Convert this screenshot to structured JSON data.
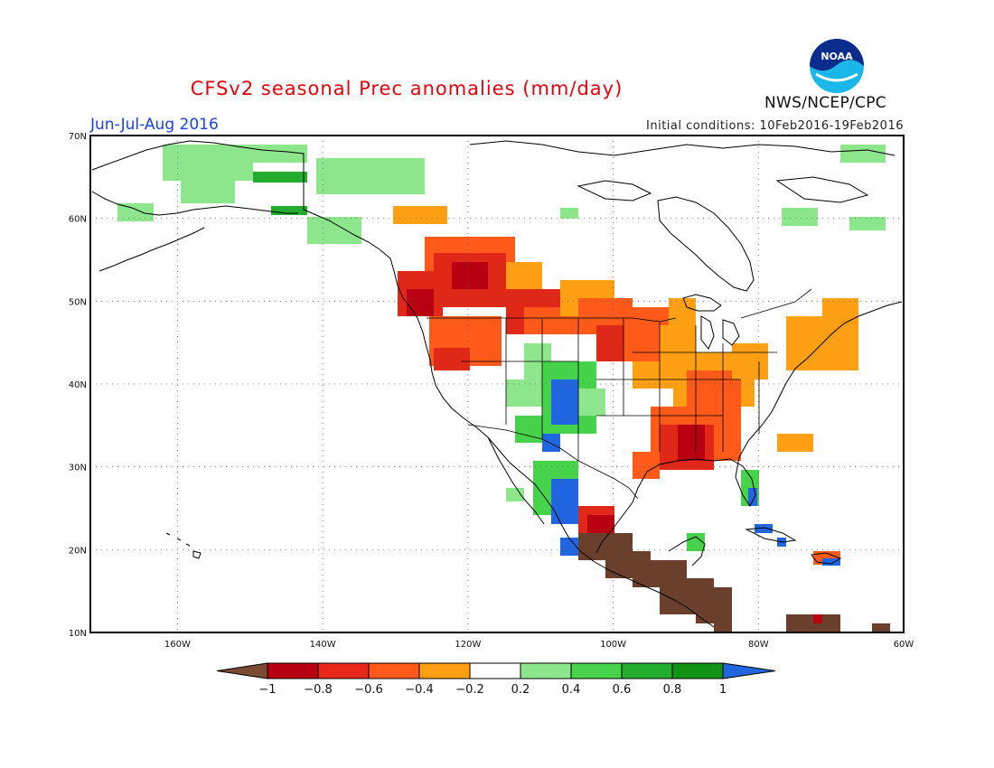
{
  "title": "CFSv2 seasonal Prec anomalies (mm/day)",
  "period": "Jun-Jul-Aug 2016",
  "initial_conditions": "Initial conditions: 10Feb2016-19Feb2016",
  "agency": "NWS/NCEP/CPC",
  "logo_text": "NOAA",
  "map": {
    "lon_range": [
      -172,
      -60
    ],
    "lat_range": [
      10,
      70
    ],
    "lat_labels": [
      "10N",
      "20N",
      "30N",
      "40N",
      "50N",
      "60N",
      "70N"
    ],
    "lon_labels": [
      "160W",
      "140W",
      "120W",
      "100W",
      "80W",
      "60W"
    ],
    "grid": true
  },
  "colorbar": {
    "colors": [
      "#7a4a32",
      "#b80012",
      "#e8281a",
      "#ff5a1a",
      "#ff9f14",
      "#ffffff",
      "#8ee68c",
      "#46d24a",
      "#22ad2e",
      "#119416",
      "#2066e0"
    ],
    "labels": [
      "−1",
      "−0.8",
      "−0.6",
      "−0.4",
      "−0.2",
      "0.2",
      "0.4",
      "0.6",
      "0.8",
      "1"
    ]
  },
  "legend_colors": {
    "brown": "#6a3f2c",
    "dark_red": "#b80012",
    "red": "#e02818",
    "orange_red": "#ff5a1a",
    "orange": "#ff9f14",
    "light_green": "#8ee68c",
    "green": "#46d24a",
    "mid_green": "#22ad2e",
    "dark_green": "#119416",
    "blue": "#2066e0"
  }
}
